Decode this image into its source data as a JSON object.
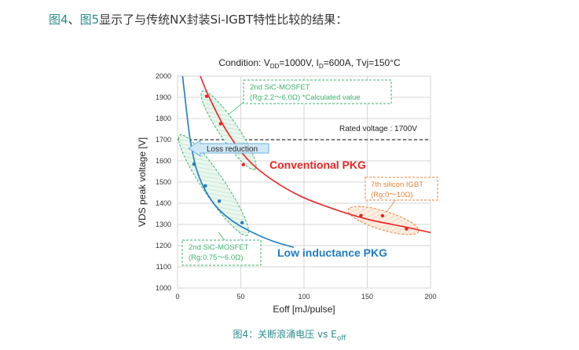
{
  "intro": {
    "link1": "图4",
    "sep": "、",
    "link2": "图5",
    "text": "显示了与传统NX封装Si-IGBT特性比较的结果："
  },
  "caption": {
    "prefix": "图4：关断浪涌电压 vs E",
    "sub": "off"
  },
  "colors": {
    "red": "#ee2222",
    "blue": "#1f7bc6",
    "green": "#3ab36e",
    "orange": "#e8823a"
  },
  "chart_data": {
    "type": "scatter",
    "title": {
      "a": "Condition: V",
      "a_sub": "DD",
      "b": "=1000V, I",
      "b_sub": "D",
      "c": "=600A, Tvj=150°C"
    },
    "xlabel": "Eoff [mJ/pulse]",
    "ylabel": "VDS peak voltage [V]",
    "xlim": [
      0,
      200
    ],
    "ylim": [
      1000,
      2000
    ],
    "xticks": [
      0,
      50,
      100,
      150,
      200
    ],
    "yticks": [
      1000,
      1100,
      1200,
      1300,
      1400,
      1500,
      1600,
      1700,
      1800,
      1900,
      2000
    ],
    "grid": true,
    "rated_voltage": {
      "value": 1700,
      "label": "Rated voltage : 1700V"
    },
    "series": [
      {
        "name": "Conventional PKG",
        "color": "#ee2222",
        "points": [
          [
            23,
            1905
          ],
          [
            34,
            1775
          ],
          [
            52,
            1582
          ],
          [
            145,
            1342
          ],
          [
            162,
            1341
          ],
          [
            181,
            1279
          ]
        ],
        "curve": [
          [
            18,
            2000
          ],
          [
            25,
            1900
          ],
          [
            40,
            1730
          ],
          [
            60,
            1580
          ],
          [
            90,
            1455
          ],
          [
            120,
            1380
          ],
          [
            150,
            1325
          ],
          [
            180,
            1288
          ],
          [
            200,
            1262
          ]
        ]
      },
      {
        "name": "Low inductance PKG",
        "color": "#1f7bc6",
        "points": [
          [
            13,
            1585
          ],
          [
            22,
            1482
          ],
          [
            33,
            1410
          ],
          [
            51,
            1308
          ]
        ],
        "curve": [
          [
            4,
            2000
          ],
          [
            7,
            1840
          ],
          [
            10,
            1700
          ],
          [
            15,
            1560
          ],
          [
            22,
            1460
          ],
          [
            32,
            1375
          ],
          [
            45,
            1310
          ],
          [
            60,
            1260
          ],
          [
            75,
            1222
          ],
          [
            92,
            1192
          ]
        ]
      }
    ],
    "annotations": {
      "sic_top": {
        "line1": "2nd SiC-MOSFET",
        "line2": "(Rg:2.2～6.0Ω) *Calculated value"
      },
      "sic_bottom": {
        "line1": "2nd SiC-MOSFET",
        "line2": "(Rg:0.75～6.0Ω)"
      },
      "igbt": {
        "line1": "7th silicon IGBT",
        "line2": "(Rg:0～10Ω)"
      },
      "loss_reduction": "Loss reduction"
    }
  }
}
